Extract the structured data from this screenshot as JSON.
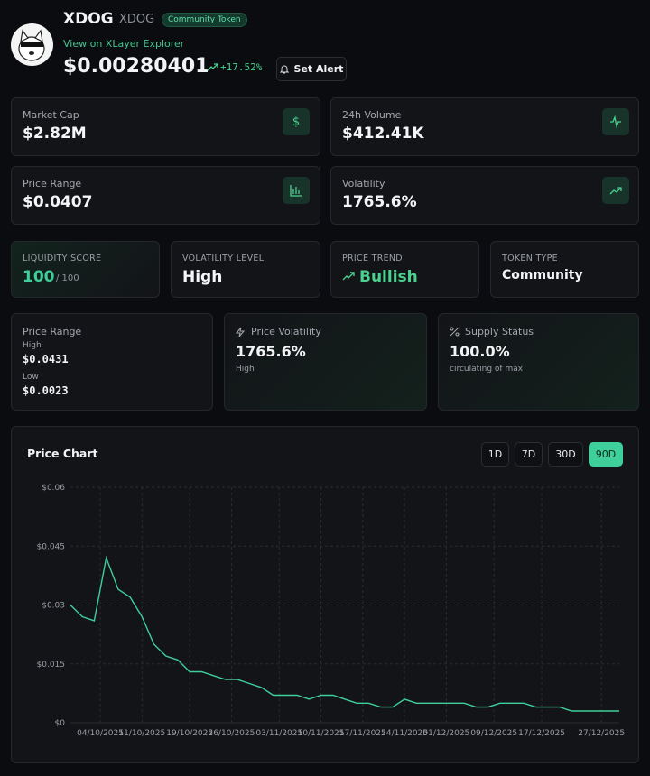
{
  "header": {
    "name": "XDOG",
    "symbol": "XDOG",
    "badge": "Community Token",
    "explorer_link": "View on XLayer Explorer",
    "price": "$0.00280401",
    "change": "+17.52%",
    "alert_button": "Set Alert"
  },
  "stat_cards": [
    {
      "label": "Market Cap",
      "value": "$2.82M"
    },
    {
      "label": "24h Volume",
      "value": "$412.41K"
    },
    {
      "label": "Price Range",
      "value": "$0.0407"
    },
    {
      "label": "Volatility",
      "value": "1765.6%"
    }
  ],
  "metrics": [
    {
      "label": "LIQUIDITY SCORE",
      "value": "100",
      "suffix": "/ 100"
    },
    {
      "label": "VOLATILITY LEVEL",
      "value": "High"
    },
    {
      "label": "PRICE TREND",
      "value": "Bullish"
    },
    {
      "label": "TOKEN TYPE",
      "value": "Community"
    }
  ],
  "details": {
    "price_range": {
      "title": "Price Range",
      "high_label": "High",
      "high": "$0.0431",
      "low_label": "Low",
      "low": "$0.0023"
    },
    "price_volatility": {
      "title": "Price Volatility",
      "value": "1765.6%",
      "note": "High"
    },
    "supply_status": {
      "title": "Supply Status",
      "value": "100.0%",
      "note": "circulating of max"
    }
  },
  "chart_panel": {
    "buttons": [
      "1D",
      "7D",
      "30D",
      "90D"
    ]
  },
  "chart_data": {
    "type": "line",
    "title": "Price Chart",
    "x": [
      "29/09/2025",
      "01/10/2025",
      "03/10/2025",
      "05/10/2025",
      "07/10/2025",
      "09/10/2025",
      "11/10/2025",
      "13/10/2025",
      "15/10/2025",
      "17/10/2025",
      "19/10/2025",
      "21/10/2025",
      "23/10/2025",
      "25/10/2025",
      "27/10/2025",
      "29/10/2025",
      "31/10/2025",
      "02/11/2025",
      "04/11/2025",
      "06/11/2025",
      "08/11/2025",
      "10/11/2025",
      "12/11/2025",
      "14/11/2025",
      "16/11/2025",
      "18/11/2025",
      "20/11/2025",
      "22/11/2025",
      "24/11/2025",
      "26/11/2025",
      "28/11/2025",
      "30/11/2025",
      "02/12/2025",
      "04/12/2025",
      "06/12/2025",
      "08/12/2025",
      "10/12/2025",
      "12/12/2025",
      "14/12/2025",
      "16/12/2025",
      "18/12/2025",
      "20/12/2025",
      "22/12/2025",
      "24/12/2025",
      "26/12/2025",
      "28/12/2025",
      "30/12/2025"
    ],
    "series": [
      {
        "name": "Price",
        "color": "#3ecf9a",
        "values": [
          0.03,
          0.027,
          0.026,
          0.042,
          0.034,
          0.032,
          0.027,
          0.02,
          0.017,
          0.016,
          0.013,
          0.013,
          0.012,
          0.011,
          0.011,
          0.01,
          0.009,
          0.007,
          0.007,
          0.007,
          0.006,
          0.007,
          0.007,
          0.006,
          0.005,
          0.005,
          0.004,
          0.004,
          0.006,
          0.005,
          0.005,
          0.005,
          0.005,
          0.005,
          0.004,
          0.004,
          0.005,
          0.005,
          0.005,
          0.004,
          0.004,
          0.004,
          0.003,
          0.003,
          0.003,
          0.003,
          0.003
        ]
      }
    ],
    "xlim": [
      "29/09/2025",
      "30/12/2025"
    ],
    "xticks": [
      "04/10/2025",
      "11/10/2025",
      "19/10/2025",
      "26/10/2025",
      "03/11/2025",
      "10/11/2025",
      "17/11/2025",
      "24/11/2025",
      "01/12/2025",
      "09/12/2025",
      "17/12/2025",
      "27/12/2025"
    ],
    "ylim": [
      0,
      0.06
    ],
    "yticks": [
      {
        "value": 0,
        "label": "$0"
      },
      {
        "value": 0.015,
        "label": "$0.015"
      },
      {
        "value": 0.03,
        "label": "$0.03"
      },
      {
        "value": 0.045,
        "label": "$0.045"
      },
      {
        "value": 0.06,
        "label": "$0.06"
      }
    ],
    "grid": true
  }
}
